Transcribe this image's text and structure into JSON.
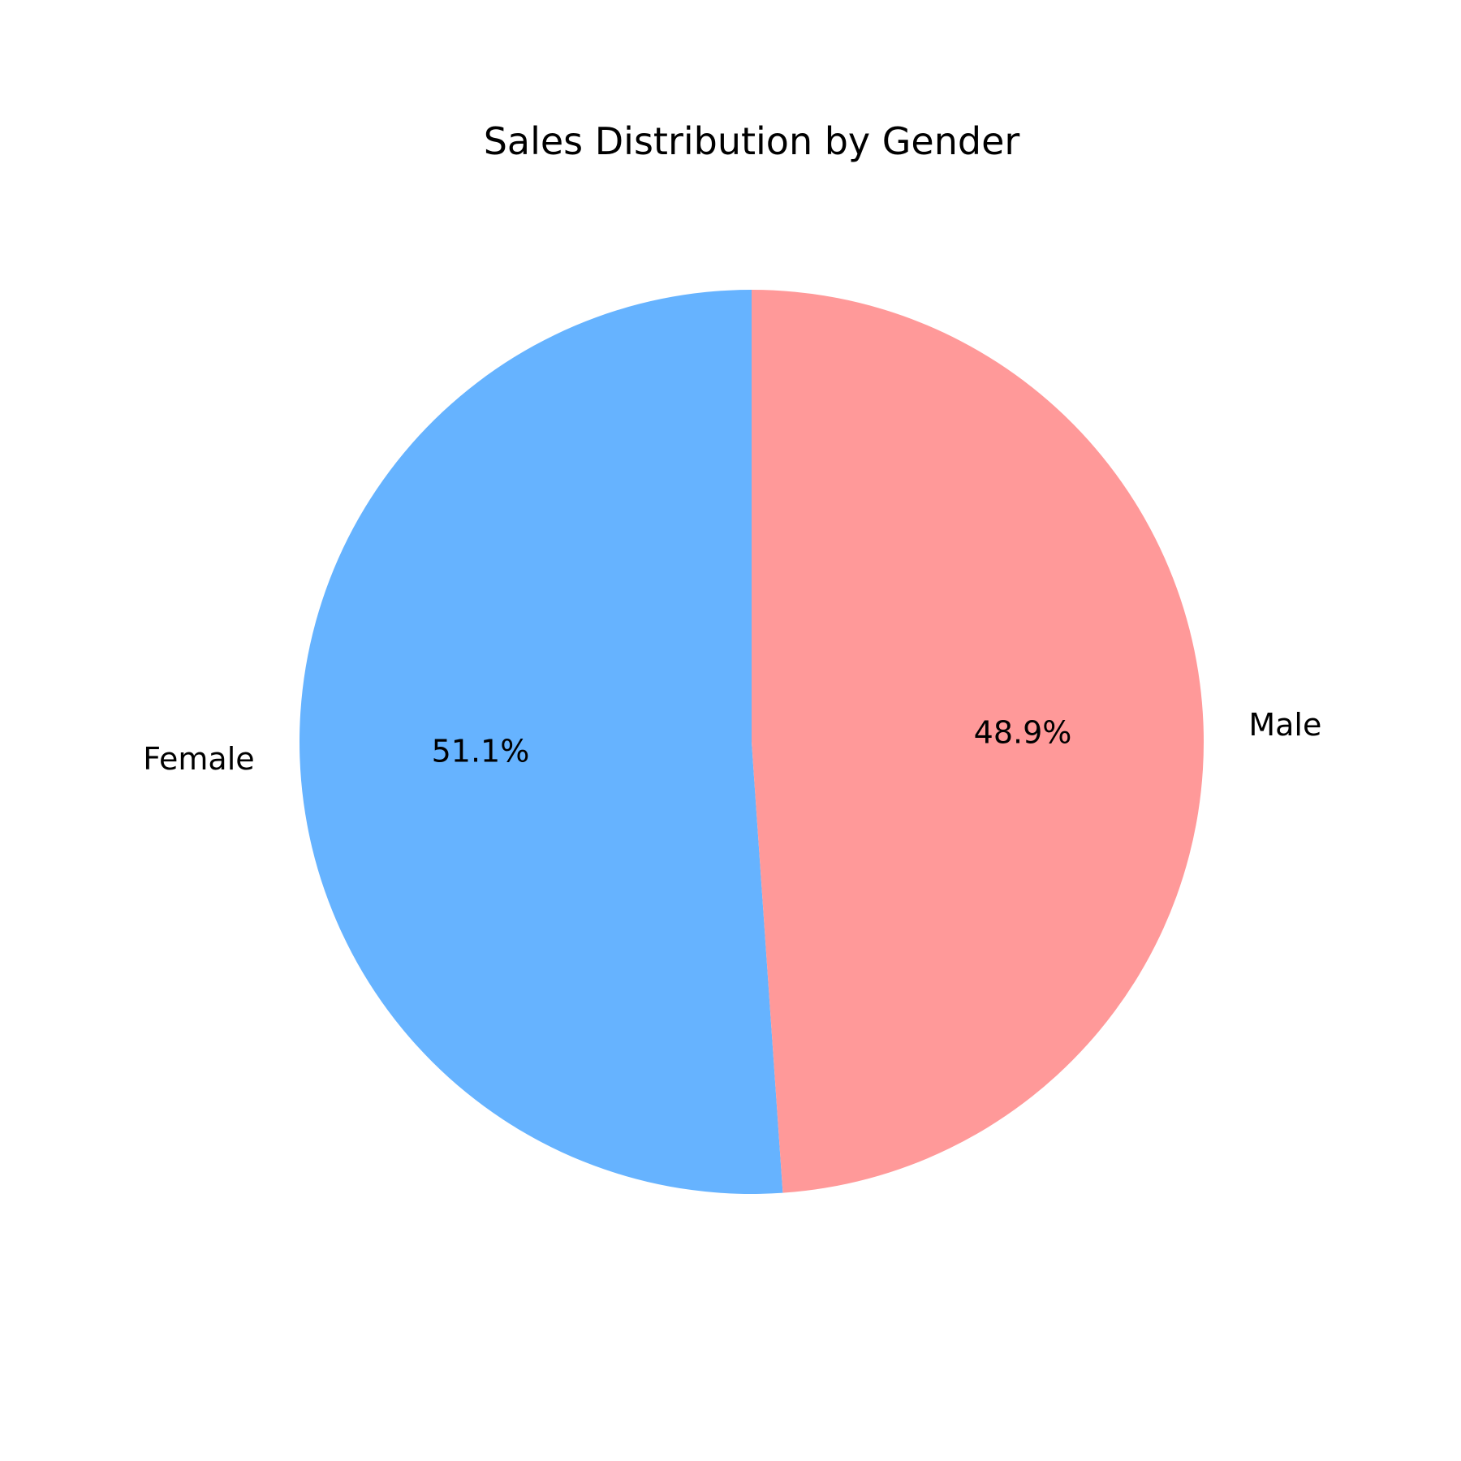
{
  "chart_data": {
    "type": "pie",
    "title": "Sales Distribution by Gender",
    "start_angle_deg": 90,
    "direction": "counterclockwise",
    "slices": [
      {
        "label": "Female",
        "value": 51.1,
        "pct_label": "51.1%",
        "color": "#66b3ff"
      },
      {
        "label": "Male",
        "value": 48.9,
        "pct_label": "48.9%",
        "color": "#ff9999"
      }
    ]
  }
}
